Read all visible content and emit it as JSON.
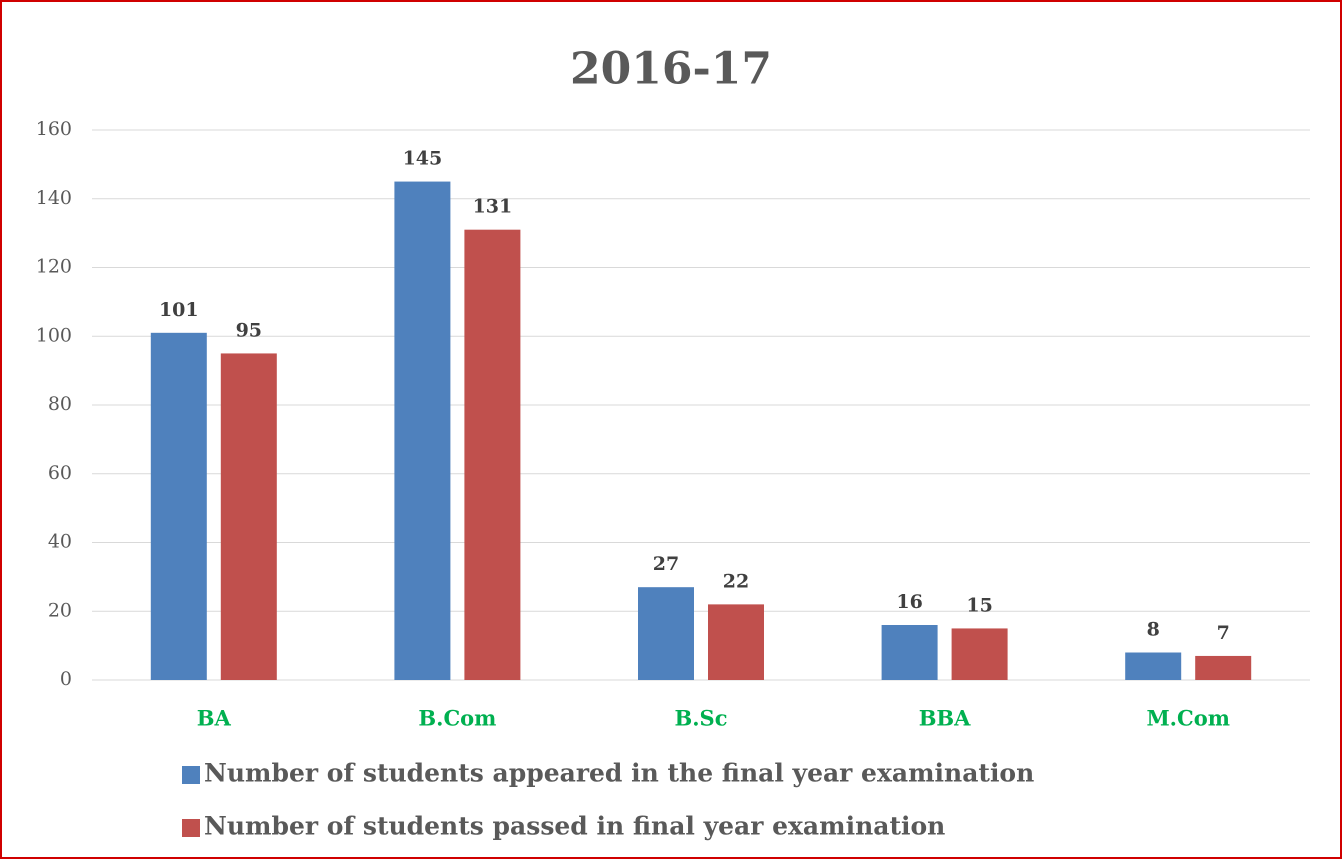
{
  "chart_data": {
    "type": "bar",
    "title": "2016-17",
    "categories": [
      "BA",
      "B.Com",
      "B.Sc",
      "BBA",
      "M.Com"
    ],
    "series": [
      {
        "name": "Number of students appeared in the final year examination",
        "color": "#4f81bd",
        "values": [
          101,
          145,
          27,
          16,
          8
        ]
      },
      {
        "name": "Number of students passed in final year examination",
        "color": "#c0504d",
        "values": [
          95,
          131,
          22,
          15,
          7
        ]
      }
    ],
    "ylim": [
      0,
      160
    ],
    "yticks": [
      0,
      20,
      40,
      60,
      80,
      100,
      120,
      140,
      160
    ],
    "grid": true,
    "legend": "bottom"
  }
}
